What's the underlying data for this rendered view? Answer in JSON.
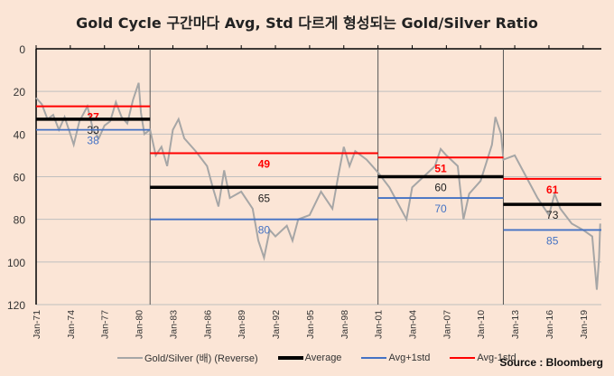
{
  "chart_data": {
    "type": "line",
    "title": "Gold Cycle 구간마다 Avg, Std 다르게 형성되는 Gold/Silver Ratio",
    "source": "Source : Bloomberg",
    "y_reversed": true,
    "ylim": [
      0,
      120
    ],
    "yticks": [
      0,
      20,
      40,
      60,
      80,
      100,
      120
    ],
    "xlim": [
      1971,
      2020.6
    ],
    "xticks": [
      "Jan-71",
      "Jan-74",
      "Jan-77",
      "Jan-80",
      "Jan-83",
      "Jan-86",
      "Jan-89",
      "Jan-92",
      "Jan-95",
      "Jan-98",
      "Jan-01",
      "Jan-04",
      "Jan-07",
      "Jan-10",
      "Jan-13",
      "Jan-16",
      "Jan-19"
    ],
    "grid": true,
    "legend": [
      "Gold/Silver (배) (Reverse)",
      "Average",
      "Avg+1std",
      "Avg-1std"
    ],
    "colors": {
      "series": "#a6a6a6",
      "average": "#000000",
      "plus": "#4472c4",
      "minus": "#ff0000"
    },
    "cycle_dividers": [
      1981,
      2001,
      2012
    ],
    "segments": [
      {
        "start": 1971,
        "end": 1981,
        "average": 33,
        "plus_1std": 38,
        "minus_1std": 27
      },
      {
        "start": 1981,
        "end": 2001,
        "average": 65,
        "plus_1std": 80,
        "minus_1std": 49
      },
      {
        "start": 2001,
        "end": 2012,
        "average": 60,
        "plus_1std": 70,
        "minus_1std": 51
      },
      {
        "start": 2012,
        "end": 2020.6,
        "average": 73,
        "plus_1std": 85,
        "minus_1std": 61
      }
    ],
    "series": [
      {
        "name": "Gold/Silver (배) (Reverse)",
        "x": [
          1971,
          1971.5,
          1972,
          1972.5,
          1973,
          1973.5,
          1974,
          1974.3,
          1974.8,
          1975.5,
          1976,
          1976.5,
          1977,
          1977.5,
          1978,
          1978.5,
          1979,
          1979.5,
          1980,
          1980.2,
          1980.5,
          1981,
          1981.5,
          1982,
          1982.5,
          1983,
          1983.5,
          1984,
          1985,
          1986,
          1986.5,
          1987,
          1987.5,
          1988,
          1989,
          1990,
          1990.5,
          1991,
          1991.5,
          1992,
          1993,
          1993.5,
          1994,
          1995,
          1996,
          1997,
          1997.5,
          1998,
          1998.5,
          1999,
          2000,
          2000.5,
          2001,
          2002,
          2003,
          2003.5,
          2004,
          2005,
          2006,
          2006.5,
          2007,
          2008,
          2008.5,
          2009,
          2010,
          2011,
          2011.3,
          2011.8,
          2012,
          2013,
          2014,
          2015,
          2016,
          2016.5,
          2017,
          2018,
          2019,
          2019.8,
          2020.2,
          2020.4,
          2020.5
        ],
        "y": [
          23,
          26,
          33,
          31,
          38,
          32,
          40,
          45,
          34,
          27,
          38,
          42,
          36,
          34,
          25,
          32,
          35,
          24,
          16,
          30,
          40,
          38,
          50,
          46,
          55,
          38,
          33,
          42,
          48,
          55,
          65,
          74,
          57,
          70,
          67,
          75,
          90,
          98,
          85,
          88,
          83,
          90,
          80,
          78,
          67,
          75,
          60,
          46,
          55,
          48,
          52,
          55,
          58,
          65,
          75,
          80,
          65,
          60,
          55,
          47,
          50,
          55,
          80,
          68,
          62,
          45,
          32,
          40,
          52,
          50,
          60,
          70,
          78,
          68,
          75,
          82,
          85,
          88,
          113,
          98,
          82
        ]
      }
    ]
  }
}
